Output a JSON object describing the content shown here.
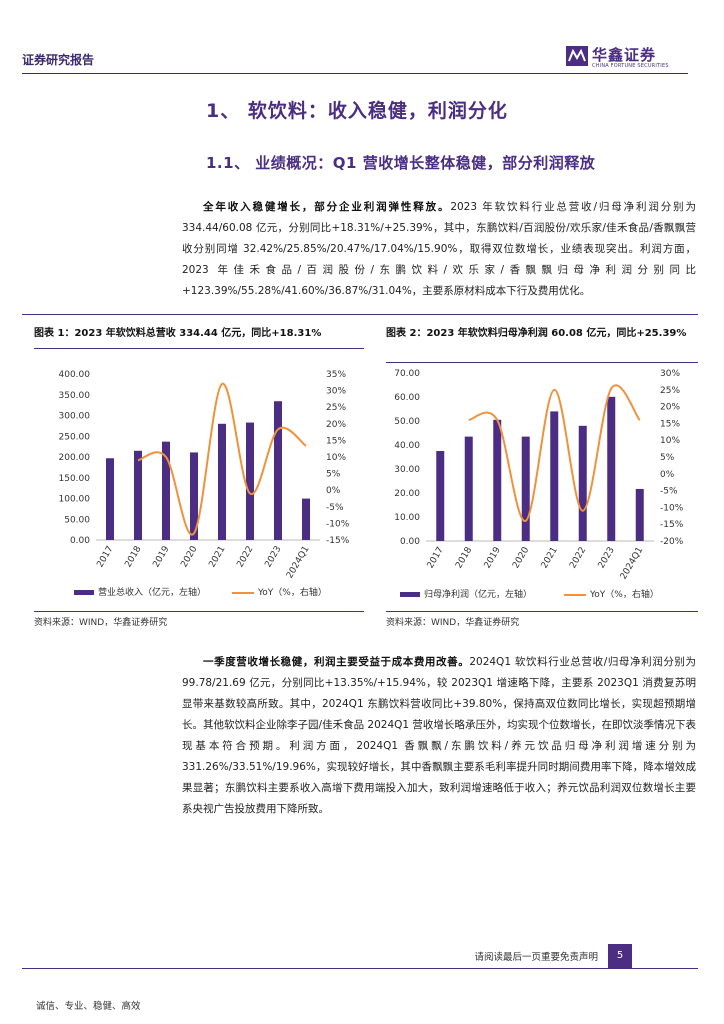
{
  "header": {
    "report_type": "证券研究报告",
    "logo_cn": "华鑫证券",
    "logo_en": "CHINA FORTUNE SECURITIES"
  },
  "section_title": "1、 软饮料：收入稳健，利润分化",
  "subsection_title": "1.1、 业绩概况：Q1 营收增长整体稳健，部分利润释放",
  "para1": {
    "lead": "全年收入稳健增长，部分企业利润弹性释放。",
    "body": "2023 年软饮料行业总营收/归母净利润分别为 334.44/60.08 亿元，分别同比+18.31%/+25.39%，其中，东鹏饮料/百润股份/欢乐家/佳禾食品/香飘飘营收分别同增 32.42%/25.85%/20.47%/17.04%/15.90%，取得双位数增长，业绩表现突出。利润方面，2023 年佳禾食品/百润股份/东鹏饮料/欢乐家/香飘飘归母净利润分别同比+123.39%/55.28%/41.60%/36.87%/31.04%，主要系原材料成本下行及费用优化。"
  },
  "para2": {
    "lead": "一季度营收增长稳健，利润主要受益于成本费用改善。",
    "body": "2024Q1 软饮料行业总营收/归母净利润分别为 99.78/21.69 亿元，分别同比+13.35%/+15.94%，较 2023Q1 增速略下降，主要系 2023Q1 消费复苏明显带来基数较高所致。其中，2024Q1 东鹏饮料营收同比+39.80%，保持高双位数同比增长，实现超预期增长。其他软饮料企业除李子园/佳禾食品 2024Q1 营收增长略承压外，均实现个位数增长，在即饮淡季情况下表现基本符合预期。利润方面，2024Q1 香飘飘/东鹏饮料/养元饮品归母净利润增速分别为 331.26%/33.51%/19.96%，实现较好增长，其中香飘飘主要系毛利率提升同时期间费用率下降，降本增效成果显著；东鹏饮料主要系收入高增下费用端投入加大，致利润增速略低于收入；养元饮品利润双位数增长主要系央视广告投放费用下降所致。"
  },
  "figure1": {
    "title": "图表 1：2023 年软饮料总营收 334.44 亿元，同比+18.31%",
    "source": "资料来源：WIND，华鑫证券研究"
  },
  "figure2": {
    "title": "图表 2：2023 年软饮料归母净利润 60.08 亿元，同比+25.39%",
    "source": "资料来源：WIND，华鑫证券研究"
  },
  "chart_data": [
    {
      "type": "bar",
      "categories": [
        "2017",
        "2018",
        "2019",
        "2020",
        "2021",
        "2022",
        "2023",
        "2024Q1"
      ],
      "series": [
        {
          "name": "营业总收入（亿元，左轴）",
          "type": "bar",
          "axis": "left",
          "color": "#4b2e83",
          "values": [
            197,
            215,
            237,
            211,
            280,
            283,
            334.44,
            99.78
          ]
        },
        {
          "name": "YoY（%，右轴）",
          "type": "line",
          "axis": "right",
          "color": "#f0923c",
          "values": [
            null,
            9,
            10,
            -13,
            32,
            -1,
            18.31,
            13.35
          ]
        }
      ],
      "ylim_left": [
        0,
        400
      ],
      "ylim_right": [
        -15,
        35
      ],
      "yticks_left": [
        "0.00",
        "50.00",
        "100.00",
        "150.00",
        "200.00",
        "250.00",
        "300.00",
        "350.00",
        "400.00"
      ],
      "yticks_right": [
        "-15%",
        "-10%",
        "-5%",
        "0%",
        "5%",
        "10%",
        "15%",
        "20%",
        "25%",
        "30%",
        "35%"
      ],
      "legend": "bottom",
      "grid": false
    },
    {
      "type": "bar",
      "categories": [
        "2017",
        "2018",
        "2019",
        "2020",
        "2021",
        "2022",
        "2023",
        "2024Q1"
      ],
      "series": [
        {
          "name": "归母净利润（亿元，左轴）",
          "type": "bar",
          "axis": "left",
          "color": "#4b2e83",
          "values": [
            37.5,
            43.5,
            50.5,
            43.5,
            54,
            48,
            60.08,
            21.69
          ]
        },
        {
          "name": "YoY（%，右轴）",
          "type": "line",
          "axis": "right",
          "color": "#f0923c",
          "values": [
            null,
            16,
            16,
            -14,
            25,
            -11,
            25.39,
            15.94
          ]
        }
      ],
      "ylim_left": [
        0,
        70
      ],
      "ylim_right": [
        -20,
        30
      ],
      "yticks_left": [
        "0.00",
        "10.00",
        "20.00",
        "30.00",
        "40.00",
        "50.00",
        "60.00",
        "70.00"
      ],
      "yticks_right": [
        "-20%",
        "-15%",
        "-10%",
        "-5%",
        "0%",
        "5%",
        "10%",
        "15%",
        "20%",
        "25%",
        "30%"
      ],
      "legend": "bottom",
      "grid": false
    }
  ],
  "footer": {
    "disclaimer": "请阅读最后一页重要免责声明",
    "page_number": "5",
    "motto": "诚信、专业、稳健、高效"
  }
}
